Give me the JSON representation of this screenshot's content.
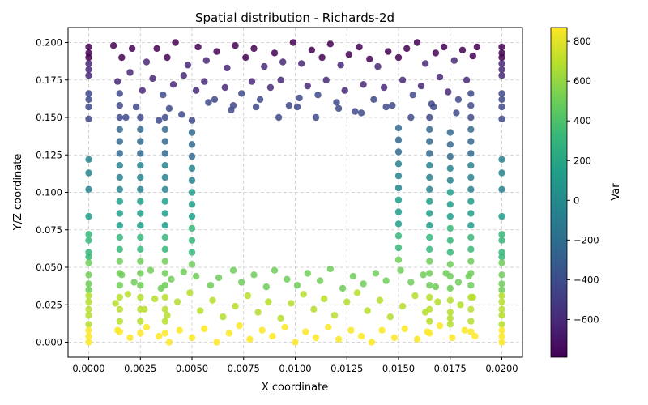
{
  "chart_data": {
    "type": "scatter",
    "title": "Spatial distribution - Richards-2d",
    "xlabel": "X coordinate",
    "ylabel": "Y/Z coordinate",
    "xlim": [
      -0.001,
      0.021
    ],
    "ylim": [
      -0.01,
      0.21
    ],
    "x_ticks": [
      "0.0000",
      "0.0025",
      "0.0050",
      "0.0075",
      "0.0100",
      "0.0125",
      "0.0150",
      "0.0175",
      "0.0200"
    ],
    "x_tick_values": [
      0,
      0.0025,
      0.005,
      0.0075,
      0.01,
      0.0125,
      0.015,
      0.0175,
      0.02
    ],
    "y_ticks": [
      "0.000",
      "0.025",
      "0.050",
      "0.075",
      "0.100",
      "0.125",
      "0.150",
      "0.175",
      "0.200"
    ],
    "y_tick_values": [
      0,
      0.025,
      0.05,
      0.075,
      0.1,
      0.125,
      0.15,
      0.175,
      0.2
    ],
    "grid": true,
    "colorbar": {
      "label": "Var",
      "colormap": "viridis",
      "range": [
        -790,
        870
      ],
      "ticks": [
        "−600",
        "−400",
        "−200",
        "0",
        "200",
        "400",
        "600",
        "800"
      ],
      "tick_values": [
        -600,
        -400,
        -200,
        0,
        200,
        400,
        600,
        800
      ]
    },
    "color_mapping": "Var increases approximately linearly as Y/Z decreases: about -790 at Y/Z = 0.200 and about 870 at Y/Z = 0.000",
    "columns_x": [
      0.0,
      0.0015,
      0.0025,
      0.0037,
      0.005,
      0.015,
      0.0165,
      0.0175,
      0.0185,
      0.02
    ],
    "point_colors": [
      "#440154",
      "#482878",
      "#3e4989",
      "#31688e",
      "#26828e",
      "#1f9e89",
      "#35b779",
      "#6ece58",
      "#b5de2b",
      "#fde725"
    ],
    "points": [
      [
        0.0,
        0.197
      ],
      [
        0.0,
        0.193
      ],
      [
        0.0,
        0.19
      ],
      [
        0.0,
        0.186
      ],
      [
        0.0,
        0.182
      ],
      [
        0.0,
        0.178
      ],
      [
        0.0,
        0.166
      ],
      [
        0.0,
        0.162
      ],
      [
        0.0,
        0.157
      ],
      [
        0.0,
        0.149
      ],
      [
        0.0,
        0.122
      ],
      [
        0.0,
        0.113
      ],
      [
        0.0,
        0.102
      ],
      [
        0.0,
        0.084
      ],
      [
        0.0,
        0.072
      ],
      [
        0.0,
        0.068
      ],
      [
        0.0,
        0.06
      ],
      [
        0.0,
        0.057
      ],
      [
        0.0,
        0.053
      ],
      [
        0.0,
        0.045
      ],
      [
        0.0,
        0.039
      ],
      [
        0.0,
        0.035
      ],
      [
        0.0,
        0.031
      ],
      [
        0.0,
        0.027
      ],
      [
        0.0,
        0.022
      ],
      [
        0.0,
        0.018
      ],
      [
        0.0,
        0.012
      ],
      [
        0.0,
        0.008
      ],
      [
        0.0,
        0.004
      ],
      [
        0.0,
        0.0
      ],
      [
        0.0015,
        0.166
      ],
      [
        0.0015,
        0.158
      ],
      [
        0.0015,
        0.15
      ],
      [
        0.0015,
        0.142
      ],
      [
        0.0015,
        0.134
      ],
      [
        0.0015,
        0.126
      ],
      [
        0.0015,
        0.118
      ],
      [
        0.0015,
        0.11
      ],
      [
        0.0015,
        0.102
      ],
      [
        0.0015,
        0.094
      ],
      [
        0.0015,
        0.086
      ],
      [
        0.0015,
        0.078
      ],
      [
        0.0015,
        0.07
      ],
      [
        0.0015,
        0.062
      ],
      [
        0.0015,
        0.054
      ],
      [
        0.0015,
        0.046
      ],
      [
        0.0015,
        0.038
      ],
      [
        0.0015,
        0.03
      ],
      [
        0.0015,
        0.022
      ],
      [
        0.0015,
        0.014
      ],
      [
        0.0015,
        0.007
      ],
      [
        0.0025,
        0.15
      ],
      [
        0.0025,
        0.142
      ],
      [
        0.0025,
        0.134
      ],
      [
        0.0025,
        0.126
      ],
      [
        0.0025,
        0.118
      ],
      [
        0.0025,
        0.11
      ],
      [
        0.0025,
        0.102
      ],
      [
        0.0025,
        0.094
      ],
      [
        0.0025,
        0.086
      ],
      [
        0.0025,
        0.078
      ],
      [
        0.0025,
        0.07
      ],
      [
        0.0025,
        0.062
      ],
      [
        0.0025,
        0.054
      ],
      [
        0.0025,
        0.046
      ],
      [
        0.0025,
        0.038
      ],
      [
        0.0025,
        0.03
      ],
      [
        0.0025,
        0.022
      ],
      [
        0.0025,
        0.014
      ],
      [
        0.0025,
        0.006
      ],
      [
        0.0037,
        0.15
      ],
      [
        0.0037,
        0.142
      ],
      [
        0.0037,
        0.134
      ],
      [
        0.0037,
        0.126
      ],
      [
        0.0037,
        0.118
      ],
      [
        0.0037,
        0.11
      ],
      [
        0.0037,
        0.102
      ],
      [
        0.0037,
        0.094
      ],
      [
        0.0037,
        0.086
      ],
      [
        0.0037,
        0.078
      ],
      [
        0.0037,
        0.07
      ],
      [
        0.0037,
        0.062
      ],
      [
        0.0037,
        0.054
      ],
      [
        0.0037,
        0.046
      ],
      [
        0.0037,
        0.038
      ],
      [
        0.0037,
        0.03
      ],
      [
        0.0037,
        0.022
      ],
      [
        0.0037,
        0.014
      ],
      [
        0.0037,
        0.006
      ],
      [
        0.005,
        0.148
      ],
      [
        0.005,
        0.14
      ],
      [
        0.005,
        0.132
      ],
      [
        0.005,
        0.124
      ],
      [
        0.005,
        0.116
      ],
      [
        0.005,
        0.108
      ],
      [
        0.005,
        0.1
      ],
      [
        0.005,
        0.092
      ],
      [
        0.005,
        0.084
      ],
      [
        0.005,
        0.076
      ],
      [
        0.005,
        0.068
      ],
      [
        0.005,
        0.06
      ],
      [
        0.005,
        0.052
      ],
      [
        0.015,
        0.143
      ],
      [
        0.015,
        0.135
      ],
      [
        0.015,
        0.127
      ],
      [
        0.015,
        0.119
      ],
      [
        0.015,
        0.111
      ],
      [
        0.015,
        0.103
      ],
      [
        0.015,
        0.095
      ],
      [
        0.015,
        0.087
      ],
      [
        0.015,
        0.079
      ],
      [
        0.015,
        0.071
      ],
      [
        0.015,
        0.063
      ],
      [
        0.015,
        0.055
      ],
      [
        0.0165,
        0.15
      ],
      [
        0.0165,
        0.142
      ],
      [
        0.0165,
        0.134
      ],
      [
        0.0165,
        0.126
      ],
      [
        0.0165,
        0.118
      ],
      [
        0.0165,
        0.11
      ],
      [
        0.0165,
        0.102
      ],
      [
        0.0165,
        0.094
      ],
      [
        0.0165,
        0.086
      ],
      [
        0.0165,
        0.078
      ],
      [
        0.0165,
        0.07
      ],
      [
        0.0165,
        0.062
      ],
      [
        0.0165,
        0.054
      ],
      [
        0.0165,
        0.046
      ],
      [
        0.0165,
        0.038
      ],
      [
        0.0165,
        0.03
      ],
      [
        0.0165,
        0.022
      ],
      [
        0.0165,
        0.014
      ],
      [
        0.0165,
        0.006
      ],
      [
        0.0175,
        0.14
      ],
      [
        0.0175,
        0.132
      ],
      [
        0.0175,
        0.124
      ],
      [
        0.0175,
        0.116
      ],
      [
        0.0175,
        0.108
      ],
      [
        0.0175,
        0.1
      ],
      [
        0.0175,
        0.092
      ],
      [
        0.0175,
        0.084
      ],
      [
        0.0175,
        0.076
      ],
      [
        0.0175,
        0.068
      ],
      [
        0.0175,
        0.06
      ],
      [
        0.0175,
        0.052
      ],
      [
        0.0175,
        0.044
      ],
      [
        0.0175,
        0.036
      ],
      [
        0.0175,
        0.028
      ],
      [
        0.0175,
        0.02
      ],
      [
        0.0175,
        0.012
      ],
      [
        0.0185,
        0.166
      ],
      [
        0.0185,
        0.158
      ],
      [
        0.0185,
        0.15
      ],
      [
        0.0185,
        0.142
      ],
      [
        0.0185,
        0.134
      ],
      [
        0.0185,
        0.126
      ],
      [
        0.0185,
        0.118
      ],
      [
        0.0185,
        0.11
      ],
      [
        0.0185,
        0.102
      ],
      [
        0.0185,
        0.094
      ],
      [
        0.0185,
        0.086
      ],
      [
        0.0185,
        0.078
      ],
      [
        0.0185,
        0.07
      ],
      [
        0.0185,
        0.062
      ],
      [
        0.0185,
        0.054
      ],
      [
        0.0185,
        0.046
      ],
      [
        0.0185,
        0.038
      ],
      [
        0.0185,
        0.03
      ],
      [
        0.0185,
        0.022
      ],
      [
        0.0185,
        0.014
      ],
      [
        0.0185,
        0.007
      ],
      [
        0.02,
        0.197
      ],
      [
        0.02,
        0.193
      ],
      [
        0.02,
        0.19
      ],
      [
        0.02,
        0.186
      ],
      [
        0.02,
        0.182
      ],
      [
        0.02,
        0.178
      ],
      [
        0.02,
        0.166
      ],
      [
        0.02,
        0.162
      ],
      [
        0.02,
        0.157
      ],
      [
        0.02,
        0.149
      ],
      [
        0.02,
        0.122
      ],
      [
        0.02,
        0.113
      ],
      [
        0.02,
        0.102
      ],
      [
        0.02,
        0.084
      ],
      [
        0.02,
        0.072
      ],
      [
        0.02,
        0.068
      ],
      [
        0.02,
        0.06
      ],
      [
        0.02,
        0.057
      ],
      [
        0.02,
        0.053
      ],
      [
        0.02,
        0.045
      ],
      [
        0.02,
        0.039
      ],
      [
        0.02,
        0.035
      ],
      [
        0.02,
        0.031
      ],
      [
        0.02,
        0.027
      ],
      [
        0.02,
        0.022
      ],
      [
        0.02,
        0.018
      ],
      [
        0.02,
        0.012
      ],
      [
        0.02,
        0.008
      ],
      [
        0.02,
        0.004
      ],
      [
        0.02,
        0.0
      ],
      [
        0.0012,
        0.198
      ],
      [
        0.0016,
        0.19
      ],
      [
        0.0021,
        0.196
      ],
      [
        0.0028,
        0.187
      ],
      [
        0.0033,
        0.196
      ],
      [
        0.0038,
        0.19
      ],
      [
        0.0042,
        0.2
      ],
      [
        0.0048,
        0.185
      ],
      [
        0.0053,
        0.197
      ],
      [
        0.0057,
        0.188
      ],
      [
        0.0062,
        0.194
      ],
      [
        0.0067,
        0.183
      ],
      [
        0.0071,
        0.198
      ],
      [
        0.0076,
        0.19
      ],
      [
        0.008,
        0.196
      ],
      [
        0.0085,
        0.184
      ],
      [
        0.009,
        0.193
      ],
      [
        0.0094,
        0.187
      ],
      [
        0.0099,
        0.2
      ],
      [
        0.0103,
        0.186
      ],
      [
        0.0108,
        0.195
      ],
      [
        0.0113,
        0.19
      ],
      [
        0.0117,
        0.199
      ],
      [
        0.0122,
        0.185
      ],
      [
        0.0126,
        0.192
      ],
      [
        0.0131,
        0.197
      ],
      [
        0.0136,
        0.189
      ],
      [
        0.014,
        0.184
      ],
      [
        0.0145,
        0.194
      ],
      [
        0.015,
        0.19
      ],
      [
        0.0154,
        0.196
      ],
      [
        0.0159,
        0.2
      ],
      [
        0.0163,
        0.186
      ],
      [
        0.0168,
        0.193
      ],
      [
        0.0172,
        0.197
      ],
      [
        0.0177,
        0.188
      ],
      [
        0.0181,
        0.195
      ],
      [
        0.0186,
        0.191
      ],
      [
        0.0188,
        0.197
      ],
      [
        0.0014,
        0.174
      ],
      [
        0.002,
        0.18
      ],
      [
        0.0026,
        0.168
      ],
      [
        0.0031,
        0.176
      ],
      [
        0.0036,
        0.165
      ],
      [
        0.0041,
        0.172
      ],
      [
        0.0046,
        0.178
      ],
      [
        0.0052,
        0.168
      ],
      [
        0.0056,
        0.174
      ],
      [
        0.0061,
        0.162
      ],
      [
        0.0066,
        0.17
      ],
      [
        0.007,
        0.158
      ],
      [
        0.0074,
        0.166
      ],
      [
        0.0079,
        0.174
      ],
      [
        0.0083,
        0.162
      ],
      [
        0.0088,
        0.17
      ],
      [
        0.0093,
        0.175
      ],
      [
        0.0097,
        0.158
      ],
      [
        0.0102,
        0.163
      ],
      [
        0.0106,
        0.171
      ],
      [
        0.0111,
        0.165
      ],
      [
        0.0115,
        0.175
      ],
      [
        0.012,
        0.16
      ],
      [
        0.0124,
        0.168
      ],
      [
        0.0129,
        0.154
      ],
      [
        0.0133,
        0.172
      ],
      [
        0.0138,
        0.162
      ],
      [
        0.0143,
        0.17
      ],
      [
        0.0147,
        0.158
      ],
      [
        0.0152,
        0.175
      ],
      [
        0.0157,
        0.165
      ],
      [
        0.0161,
        0.171
      ],
      [
        0.0166,
        0.159
      ],
      [
        0.017,
        0.177
      ],
      [
        0.0174,
        0.167
      ],
      [
        0.0179,
        0.162
      ],
      [
        0.0183,
        0.175
      ],
      [
        0.0018,
        0.15
      ],
      [
        0.0023,
        0.157
      ],
      [
        0.0034,
        0.148
      ],
      [
        0.0039,
        0.156
      ],
      [
        0.0045,
        0.152
      ],
      [
        0.0058,
        0.16
      ],
      [
        0.0069,
        0.155
      ],
      [
        0.0081,
        0.157
      ],
      [
        0.0092,
        0.15
      ],
      [
        0.0101,
        0.157
      ],
      [
        0.011,
        0.15
      ],
      [
        0.0121,
        0.156
      ],
      [
        0.0132,
        0.153
      ],
      [
        0.0144,
        0.157
      ],
      [
        0.0156,
        0.15
      ],
      [
        0.0167,
        0.157
      ],
      [
        0.0178,
        0.153
      ],
      [
        0.0016,
        0.045
      ],
      [
        0.0022,
        0.04
      ],
      [
        0.003,
        0.048
      ],
      [
        0.0035,
        0.036
      ],
      [
        0.004,
        0.042
      ],
      [
        0.0046,
        0.047
      ],
      [
        0.0052,
        0.044
      ],
      [
        0.0059,
        0.038
      ],
      [
        0.0063,
        0.043
      ],
      [
        0.007,
        0.048
      ],
      [
        0.0074,
        0.04
      ],
      [
        0.008,
        0.045
      ],
      [
        0.0086,
        0.037
      ],
      [
        0.009,
        0.048
      ],
      [
        0.0096,
        0.042
      ],
      [
        0.0101,
        0.038
      ],
      [
        0.0106,
        0.046
      ],
      [
        0.0112,
        0.041
      ],
      [
        0.0117,
        0.049
      ],
      [
        0.0123,
        0.036
      ],
      [
        0.0128,
        0.044
      ],
      [
        0.0133,
        0.039
      ],
      [
        0.0139,
        0.046
      ],
      [
        0.0144,
        0.041
      ],
      [
        0.0151,
        0.048
      ],
      [
        0.0156,
        0.04
      ],
      [
        0.0162,
        0.045
      ],
      [
        0.0168,
        0.037
      ],
      [
        0.0173,
        0.046
      ],
      [
        0.0179,
        0.04
      ],
      [
        0.0184,
        0.044
      ],
      [
        0.0013,
        0.026
      ],
      [
        0.0019,
        0.032
      ],
      [
        0.0027,
        0.022
      ],
      [
        0.0032,
        0.029
      ],
      [
        0.0038,
        0.018
      ],
      [
        0.0043,
        0.027
      ],
      [
        0.0049,
        0.033
      ],
      [
        0.0054,
        0.021
      ],
      [
        0.006,
        0.028
      ],
      [
        0.0065,
        0.017
      ],
      [
        0.0071,
        0.024
      ],
      [
        0.0077,
        0.031
      ],
      [
        0.0082,
        0.02
      ],
      [
        0.0087,
        0.027
      ],
      [
        0.0093,
        0.016
      ],
      [
        0.0098,
        0.026
      ],
      [
        0.0104,
        0.032
      ],
      [
        0.0109,
        0.022
      ],
      [
        0.0114,
        0.029
      ],
      [
        0.0119,
        0.018
      ],
      [
        0.0125,
        0.027
      ],
      [
        0.013,
        0.033
      ],
      [
        0.0135,
        0.021
      ],
      [
        0.0141,
        0.028
      ],
      [
        0.0146,
        0.017
      ],
      [
        0.0152,
        0.024
      ],
      [
        0.0158,
        0.031
      ],
      [
        0.0163,
        0.02
      ],
      [
        0.0169,
        0.027
      ],
      [
        0.0175,
        0.016
      ],
      [
        0.018,
        0.025
      ],
      [
        0.0186,
        0.03
      ],
      [
        0.0014,
        0.008
      ],
      [
        0.002,
        0.003
      ],
      [
        0.0028,
        0.01
      ],
      [
        0.0034,
        0.004
      ],
      [
        0.0039,
        0.0
      ],
      [
        0.0044,
        0.008
      ],
      [
        0.005,
        0.003
      ],
      [
        0.0056,
        0.009
      ],
      [
        0.0062,
        0.0
      ],
      [
        0.0068,
        0.006
      ],
      [
        0.0073,
        0.011
      ],
      [
        0.0078,
        0.002
      ],
      [
        0.0084,
        0.008
      ],
      [
        0.0089,
        0.004
      ],
      [
        0.0095,
        0.01
      ],
      [
        0.01,
        0.0
      ],
      [
        0.0105,
        0.007
      ],
      [
        0.011,
        0.003
      ],
      [
        0.0116,
        0.01
      ],
      [
        0.0121,
        0.002
      ],
      [
        0.0127,
        0.008
      ],
      [
        0.0132,
        0.004
      ],
      [
        0.0137,
        0.0
      ],
      [
        0.0142,
        0.008
      ],
      [
        0.0148,
        0.003
      ],
      [
        0.0153,
        0.009
      ],
      [
        0.0159,
        0.002
      ],
      [
        0.0164,
        0.007
      ],
      [
        0.017,
        0.011
      ],
      [
        0.0176,
        0.003
      ],
      [
        0.0182,
        0.008
      ],
      [
        0.0187,
        0.004
      ]
    ]
  }
}
